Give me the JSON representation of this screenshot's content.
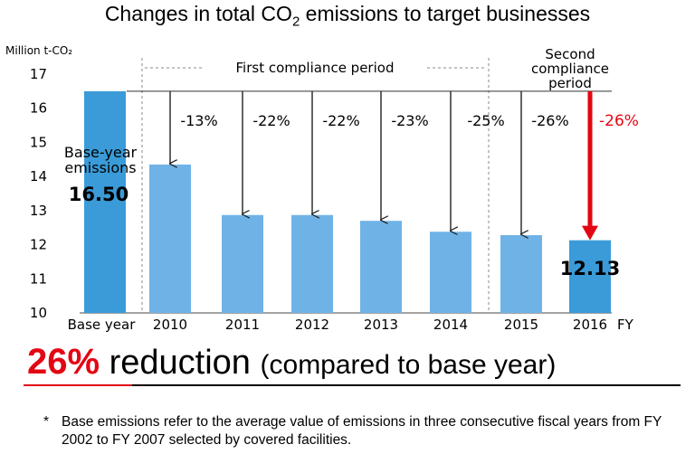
{
  "title": {
    "main": "Changes in total CO",
    "sub": "2",
    "rest": " emissions to target businesses"
  },
  "colors": {
    "base_bar": "#3a9bd8",
    "bar": "#6fb3e6",
    "highlight": "#e30613",
    "arrow": "#222222"
  },
  "chart_data": {
    "type": "bar",
    "ylabel": "Million t-CO₂",
    "xunit": "FY",
    "ylim": [
      10,
      17
    ],
    "yticks": [
      10,
      11,
      12,
      13,
      14,
      15,
      16,
      17
    ],
    "grid": false,
    "categories": [
      "Base year",
      "2010",
      "2011",
      "2012",
      "2013",
      "2014",
      "2015",
      "2016"
    ],
    "values": [
      16.5,
      14.35,
      12.87,
      12.87,
      12.7,
      12.38,
      12.28,
      12.13
    ],
    "reductions": [
      "",
      "-13%",
      "-22%",
      "-22%",
      "-23%",
      "-25%",
      "-26%",
      "-26%"
    ],
    "periods": [
      "First compliance period",
      "Second compliance period"
    ],
    "base_label": [
      "Base-year",
      "emissions"
    ],
    "base_value_label": "16.50",
    "last_value_label": "12.13"
  },
  "headline": {
    "percent": "26%",
    "word": " reduction ",
    "paren": "(compared to base year)"
  },
  "footnote": {
    "star": "*",
    "text": "Base emissions refer to the average value of emissions in three consecutive fiscal years from FY 2002 to FY 2007 selected by covered facilities."
  }
}
